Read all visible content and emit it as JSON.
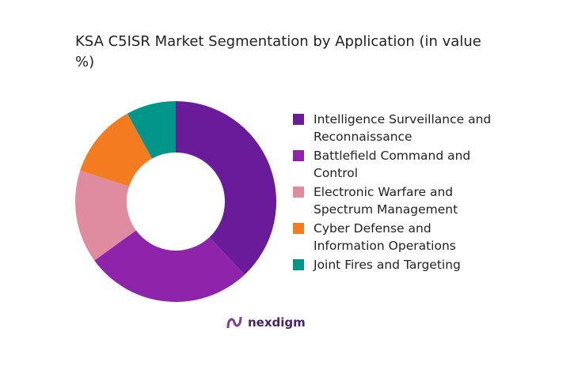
{
  "chart_data": {
    "type": "pie",
    "title": "KSA C5ISR Market Segmentation by Application (in value %)",
    "categories": [
      "Intelligence Surveillance and Reconnaissance",
      "Battlefield Command and Control",
      "Electronic Warfare and Spectrum Management",
      "Cyber Defense and Information Operations",
      "Joint Fires and Targeting"
    ],
    "values": [
      38,
      27,
      15,
      12,
      8
    ],
    "colors": [
      "#6a1b9a",
      "#8e24aa",
      "#e08ca0",
      "#f47c20",
      "#00968a"
    ],
    "legend": "right"
  },
  "brand": "nexdigm"
}
